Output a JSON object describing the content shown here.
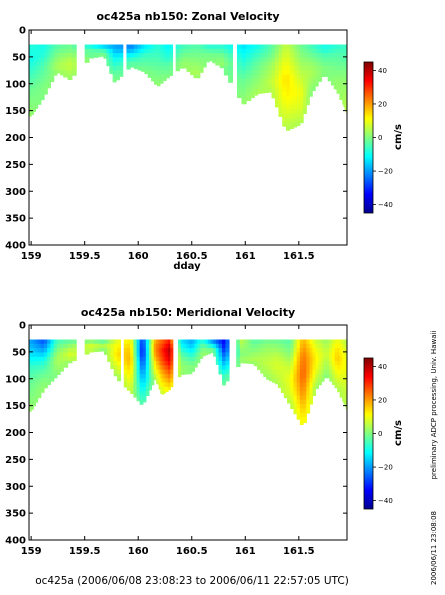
{
  "figure_footer": "oc425a (2006/06/08 23:08:23 to 2006/06/11 22:57:05 UTC)",
  "side_note_processing": "preliminary ADCP processing,   Univ. Hawaii",
  "side_note_timestamp": "2006/06/11 23:08:08",
  "colormap": [
    "#00008f",
    "#0000ff",
    "#0080ff",
    "#00ffff",
    "#80ff80",
    "#ffff00",
    "#ff8000",
    "#ff0000",
    "#800000"
  ],
  "chart_data": [
    {
      "type": "heatmap",
      "title": "oc425a nb150: Zonal Velocity",
      "xlabel": "dday",
      "ylabel": "",
      "xlim": [
        158.98,
        161.95
      ],
      "ylim": [
        400,
        0
      ],
      "x_ticks": [
        159,
        159.5,
        160,
        160.5,
        161,
        161.5
      ],
      "x_tick_labels": [
        "159",
        "159.5",
        "160",
        "160.5",
        "161",
        "161.5"
      ],
      "y_ticks": [
        0,
        50,
        100,
        150,
        200,
        250,
        300,
        350,
        400
      ],
      "y_tick_labels": [
        "0",
        "50",
        "100",
        "150",
        "200",
        "250",
        "300",
        "350",
        "400"
      ],
      "colorbar": {
        "label": "cm/s",
        "range": [
          -45,
          45
        ],
        "ticks": [
          40,
          20,
          0,
          -20,
          -40
        ],
        "tick_labels": [
          "40",
          "20",
          "0",
          "−20",
          "−40"
        ]
      },
      "top_depth_m": 27,
      "gaps": [
        [
          159.42,
          159.49
        ],
        [
          159.84,
          159.88
        ],
        [
          160.33,
          160.36
        ],
        [
          160.86,
          160.93
        ]
      ],
      "profiles": [
        {
          "dday": 159.0,
          "depth": 160,
          "v": [
            -8,
            -10,
            -6,
            -2,
            0,
            2
          ]
        },
        {
          "dday": 159.12,
          "depth": 125,
          "v": [
            -10,
            -8,
            -4,
            -2,
            0,
            0
          ]
        },
        {
          "dday": 159.24,
          "depth": 78,
          "v": [
            -4,
            -2,
            0,
            2,
            4,
            2
          ]
        },
        {
          "dday": 159.36,
          "depth": 92,
          "v": [
            -2,
            0,
            4,
            6,
            4,
            2
          ]
        },
        {
          "dday": 159.56,
          "depth": 52,
          "v": [
            -12,
            -8,
            -4,
            -2,
            -2,
            0
          ]
        },
        {
          "dday": 159.68,
          "depth": 48,
          "v": [
            -18,
            -14,
            -8,
            -4,
            -2,
            0
          ]
        },
        {
          "dday": 159.78,
          "depth": 98,
          "v": [
            -20,
            -16,
            -10,
            -6,
            -2,
            0
          ]
        },
        {
          "dday": 159.93,
          "depth": 68,
          "v": [
            -24,
            -20,
            -14,
            -8,
            -4,
            -2
          ]
        },
        {
          "dday": 160.06,
          "depth": 78,
          "v": [
            -14,
            -10,
            -6,
            -4,
            -2,
            0
          ]
        },
        {
          "dday": 160.18,
          "depth": 105,
          "v": [
            -8,
            -6,
            -4,
            -2,
            0,
            2
          ]
        },
        {
          "dday": 160.28,
          "depth": 88,
          "v": [
            -12,
            -10,
            -8,
            -4,
            -2,
            0
          ]
        },
        {
          "dday": 160.42,
          "depth": 68,
          "v": [
            -6,
            -4,
            -2,
            0,
            2,
            2
          ]
        },
        {
          "dday": 160.55,
          "depth": 92,
          "v": [
            -4,
            -2,
            0,
            2,
            4,
            2
          ]
        },
        {
          "dday": 160.66,
          "depth": 55,
          "v": [
            -10,
            -6,
            -4,
            -2,
            0,
            0
          ]
        },
        {
          "dday": 160.78,
          "depth": 70,
          "v": [
            -8,
            -6,
            -2,
            0,
            2,
            0
          ]
        },
        {
          "dday": 160.98,
          "depth": 138,
          "v": [
            -14,
            -10,
            -6,
            -2,
            0,
            2
          ]
        },
        {
          "dday": 161.12,
          "depth": 118,
          "v": [
            -10,
            -6,
            -2,
            0,
            2,
            4
          ]
        },
        {
          "dday": 161.24,
          "depth": 115,
          "v": [
            -4,
            -2,
            2,
            4,
            6,
            4
          ]
        },
        {
          "dday": 161.38,
          "depth": 188,
          "v": [
            6,
            10,
            14,
            12,
            8,
            4
          ]
        },
        {
          "dday": 161.52,
          "depth": 175,
          "v": [
            -2,
            2,
            6,
            10,
            8,
            4
          ]
        },
        {
          "dday": 161.62,
          "depth": 118,
          "v": [
            -6,
            -2,
            2,
            4,
            2,
            0
          ]
        },
        {
          "dday": 161.74,
          "depth": 82,
          "v": [
            -10,
            -8,
            -4,
            -2,
            0,
            0
          ]
        },
        {
          "dday": 161.86,
          "depth": 115,
          "v": [
            -8,
            -4,
            -2,
            0,
            2,
            2
          ]
        },
        {
          "dday": 161.95,
          "depth": 155,
          "v": [
            -6,
            -4,
            0,
            2,
            4,
            6
          ]
        }
      ]
    },
    {
      "type": "heatmap",
      "title": "oc425a nb150: Meridional Velocity",
      "xlabel": "",
      "ylabel": "",
      "xlim": [
        158.98,
        161.95
      ],
      "ylim": [
        400,
        0
      ],
      "x_ticks": [
        159,
        159.5,
        160,
        160.5,
        161,
        161.5
      ],
      "x_tick_labels": [
        "159",
        "159.5",
        "160",
        "160.5",
        "161",
        "161.5"
      ],
      "y_ticks": [
        0,
        50,
        100,
        150,
        200,
        250,
        300,
        350,
        400
      ],
      "y_tick_labels": [
        "0",
        "50",
        "100",
        "150",
        "200",
        "250",
        "300",
        "350",
        "400"
      ],
      "colorbar": {
        "label": "cm/s",
        "range": [
          -45,
          45
        ],
        "ticks": [
          40,
          20,
          0,
          -20,
          -40
        ],
        "tick_labels": [
          "40",
          "20",
          "0",
          "−20",
          "−40"
        ]
      },
      "top_depth_m": 27,
      "gaps": [
        [
          159.42,
          159.49
        ],
        [
          159.84,
          159.88
        ],
        [
          160.33,
          160.36
        ],
        [
          160.86,
          160.93
        ]
      ],
      "profiles": [
        {
          "dday": 159.0,
          "depth": 160,
          "v": [
            -20,
            -14,
            -6,
            -2,
            0,
            2
          ]
        },
        {
          "dday": 159.12,
          "depth": 120,
          "v": [
            -28,
            -20,
            -10,
            -4,
            0,
            2
          ]
        },
        {
          "dday": 159.24,
          "depth": 95,
          "v": [
            -6,
            -2,
            2,
            4,
            2,
            0
          ]
        },
        {
          "dday": 159.36,
          "depth": 70,
          "v": [
            -4,
            0,
            4,
            8,
            6,
            2
          ]
        },
        {
          "dday": 159.56,
          "depth": 50,
          "v": [
            -2,
            2,
            6,
            8,
            6,
            4
          ]
        },
        {
          "dday": 159.68,
          "depth": 48,
          "v": [
            -6,
            -2,
            2,
            4,
            2,
            0
          ]
        },
        {
          "dday": 159.8,
          "depth": 100,
          "v": [
            8,
            12,
            14,
            10,
            6,
            2
          ]
        },
        {
          "dday": 159.93,
          "depth": 125,
          "v": [
            12,
            16,
            18,
            14,
            10,
            6
          ]
        },
        {
          "dday": 160.04,
          "depth": 150,
          "v": [
            -30,
            -34,
            -26,
            -18,
            -10,
            -4
          ]
        },
        {
          "dday": 160.16,
          "depth": 100,
          "v": [
            18,
            22,
            20,
            14,
            10,
            4
          ]
        },
        {
          "dday": 160.22,
          "depth": 130,
          "v": [
            24,
            30,
            26,
            18,
            12,
            6
          ]
        },
        {
          "dday": 160.29,
          "depth": 120,
          "v": [
            30,
            40,
            36,
            28,
            20,
            12
          ]
        },
        {
          "dday": 160.4,
          "depth": 92,
          "v": [
            -14,
            -10,
            -4,
            0,
            2,
            2
          ]
        },
        {
          "dday": 160.5,
          "depth": 90,
          "v": [
            -20,
            -16,
            -10,
            -4,
            0,
            0
          ]
        },
        {
          "dday": 160.6,
          "depth": 58,
          "v": [
            -8,
            -6,
            -2,
            0,
            2,
            2
          ]
        },
        {
          "dday": 160.7,
          "depth": 50,
          "v": [
            -24,
            -20,
            -14,
            -8,
            -2,
            0
          ]
        },
        {
          "dday": 160.8,
          "depth": 112,
          "v": [
            -34,
            -30,
            -22,
            -14,
            -6,
            -2
          ]
        },
        {
          "dday": 160.96,
          "depth": 70,
          "v": [
            6,
            4,
            2,
            0,
            2,
            2
          ]
        },
        {
          "dday": 161.08,
          "depth": 72,
          "v": [
            -4,
            -2,
            0,
            2,
            4,
            2
          ]
        },
        {
          "dday": 161.2,
          "depth": 100,
          "v": [
            -2,
            2,
            4,
            6,
            4,
            2
          ]
        },
        {
          "dday": 161.3,
          "depth": 110,
          "v": [
            -2,
            2,
            6,
            8,
            6,
            4
          ]
        },
        {
          "dday": 161.42,
          "depth": 150,
          "v": [
            -4,
            0,
            6,
            10,
            8,
            4
          ]
        },
        {
          "dday": 161.54,
          "depth": 190,
          "v": [
            18,
            24,
            26,
            22,
            16,
            10
          ]
        },
        {
          "dday": 161.66,
          "depth": 120,
          "v": [
            6,
            10,
            12,
            10,
            6,
            2
          ]
        },
        {
          "dday": 161.76,
          "depth": 95,
          "v": [
            2,
            4,
            6,
            4,
            2,
            0
          ]
        },
        {
          "dday": 161.86,
          "depth": 120,
          "v": [
            10,
            14,
            16,
            12,
            8,
            4
          ]
        },
        {
          "dday": 161.95,
          "depth": 158,
          "v": [
            4,
            8,
            10,
            8,
            6,
            4
          ]
        }
      ]
    }
  ]
}
